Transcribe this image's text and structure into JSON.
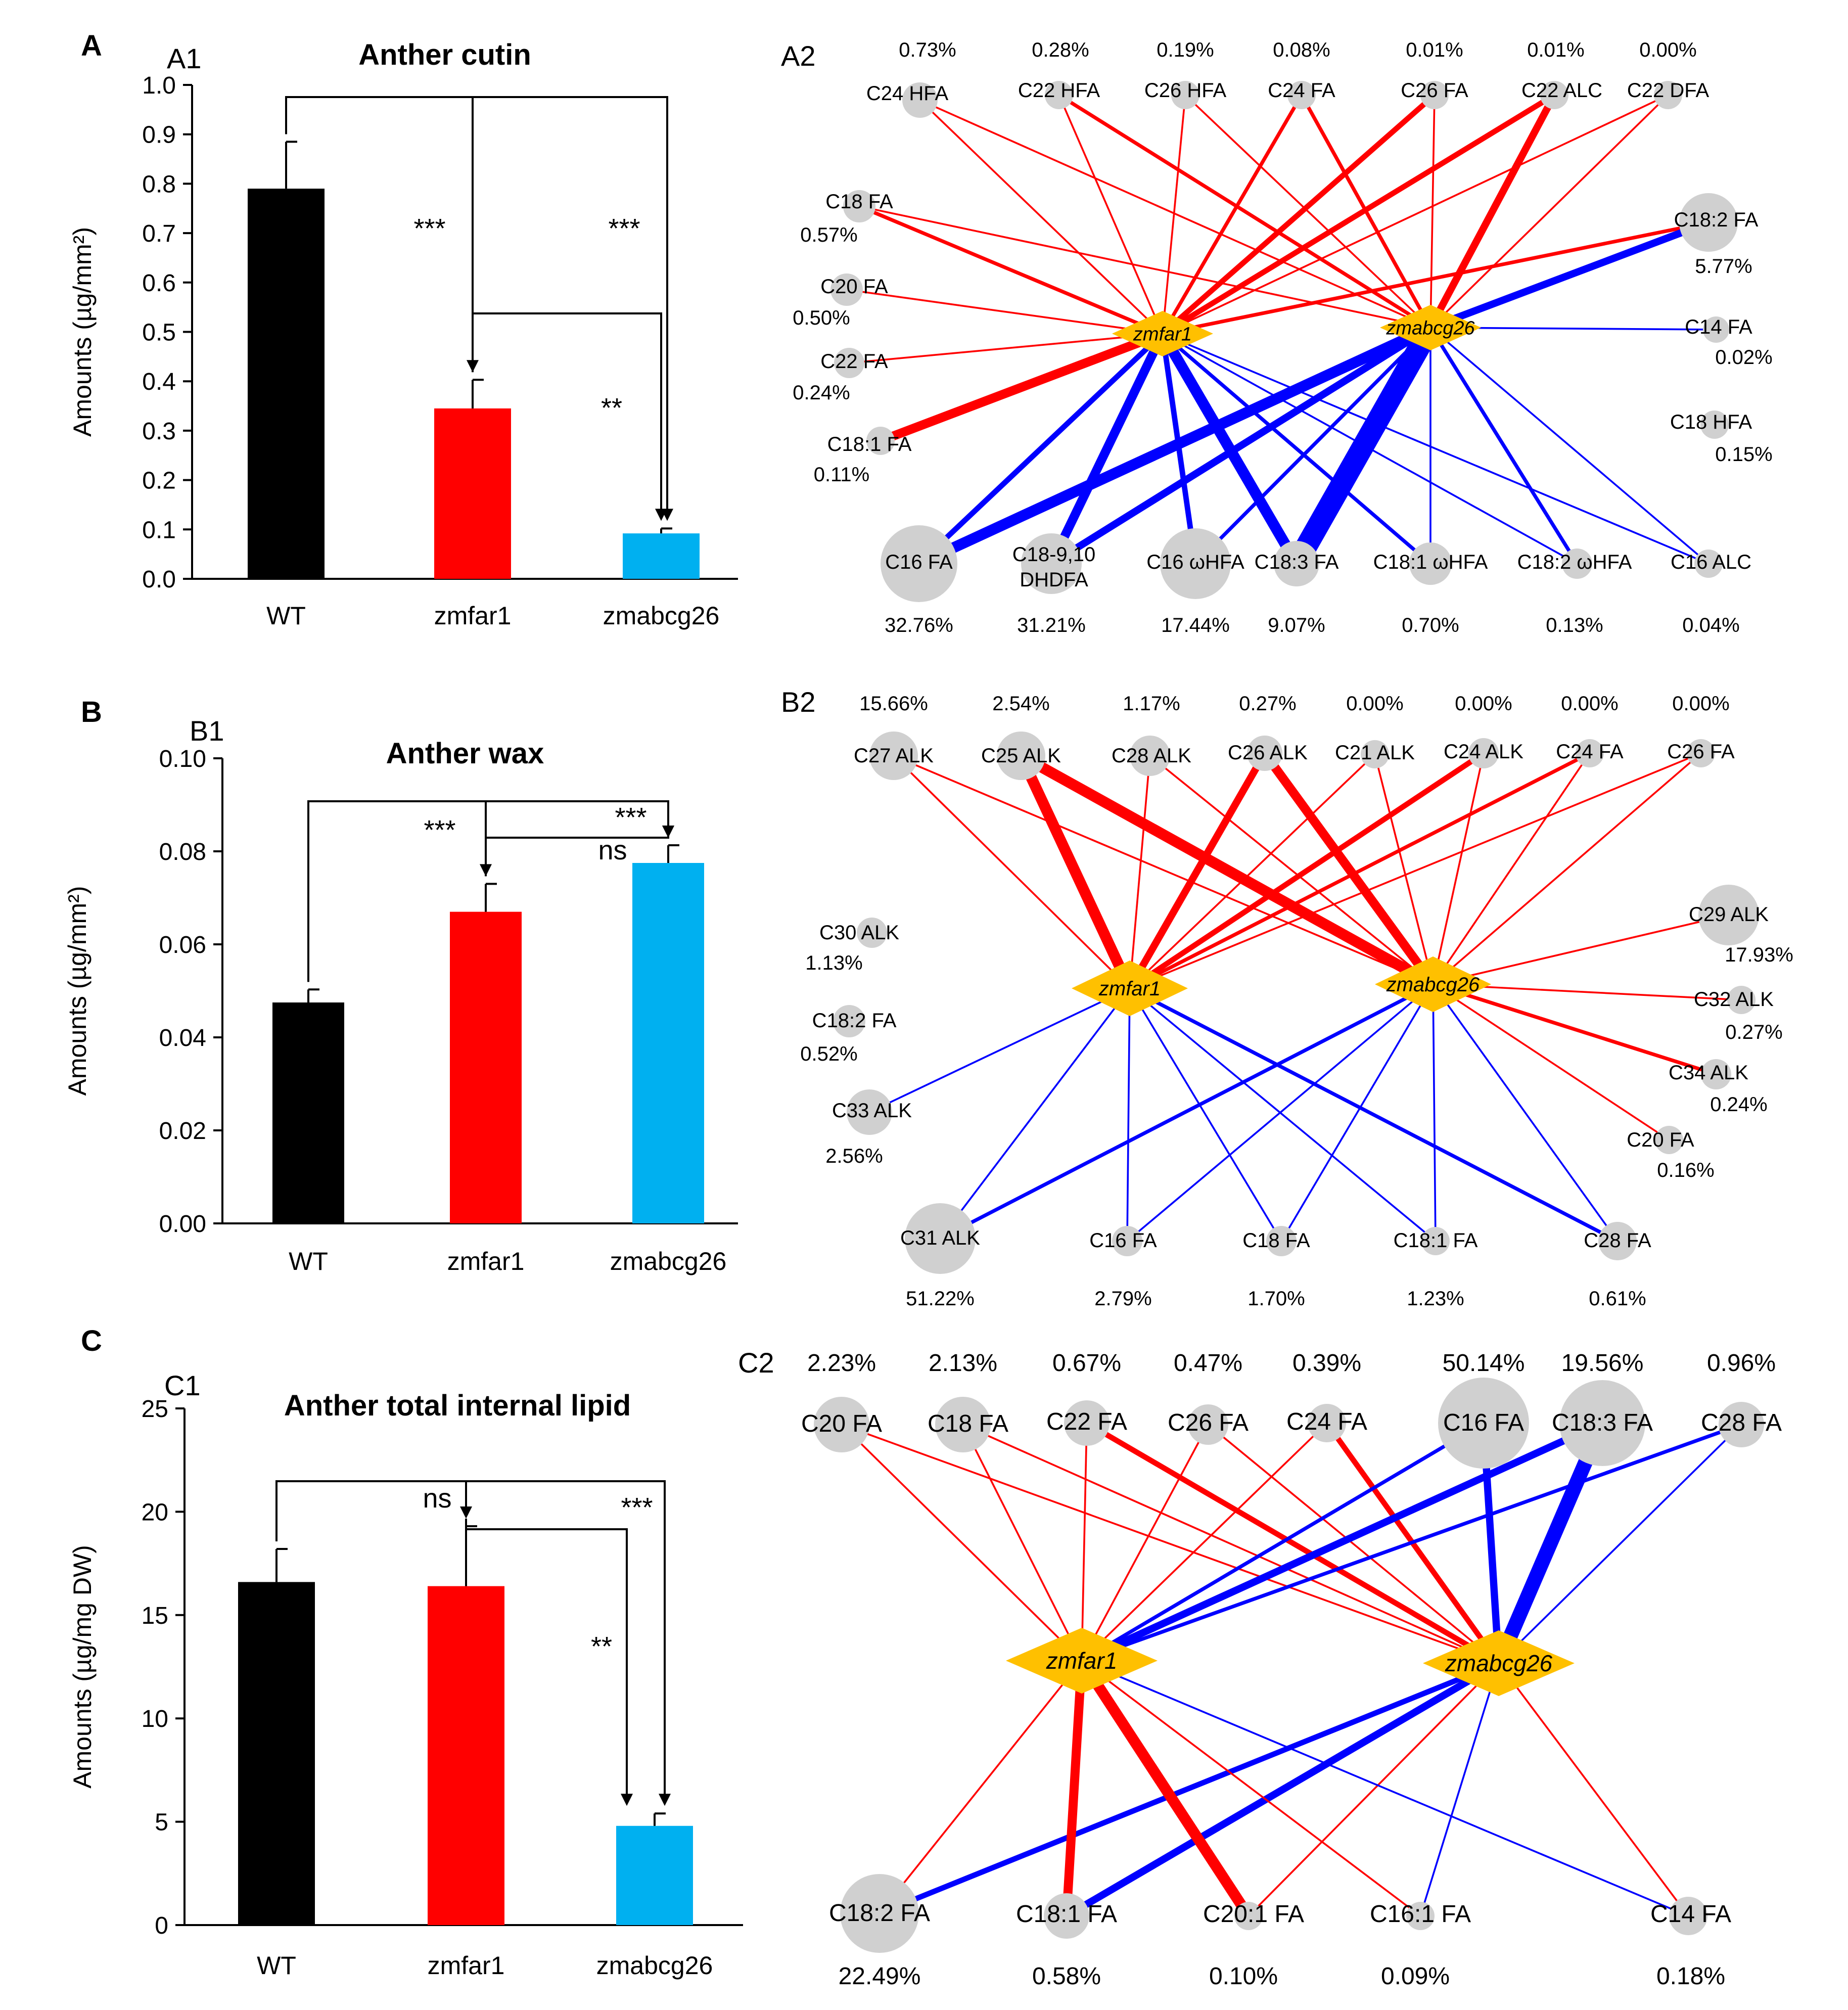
{
  "panel_labels": {
    "A": "A",
    "B": "B",
    "C": "C",
    "A1": "A1",
    "A2": "A2",
    "B1": "B1",
    "B2": "B2",
    "C1": "C1",
    "C2": "C2"
  },
  "colors": {
    "WT": "#000000",
    "zmfar1": "#ff0000",
    "zmabcg26": "#00b0f0",
    "increase": "#ff0000",
    "decrease": "#0000ff",
    "node": "#d0d0d0",
    "hub": "#ffc000"
  },
  "chart_data": [
    {
      "id": "A1",
      "type": "bar",
      "title": "Anther cutin",
      "xlabel": "",
      "ylabel": "Amounts (µg/mm²)",
      "categories": [
        "WT",
        "zmfar1",
        "zmabcg26"
      ],
      "values": [
        0.79,
        0.345,
        0.092
      ],
      "errors": [
        0.095,
        0.058,
        0.01
      ],
      "ylim": [
        0,
        1.0
      ],
      "yticks": [
        "0.0",
        "0.1",
        "0.2",
        "0.3",
        "0.4",
        "0.5",
        "0.6",
        "0.7",
        "0.8",
        "0.9",
        "1.0"
      ],
      "comparisons": [
        {
          "pair": [
            "WT",
            "zmfar1"
          ],
          "label": "***"
        },
        {
          "pair": [
            "WT",
            "zmabcg26"
          ],
          "label": "***"
        },
        {
          "pair": [
            "zmfar1",
            "zmabcg26"
          ],
          "label": "**"
        }
      ]
    },
    {
      "id": "B1",
      "type": "bar",
      "title": "Anther wax",
      "xlabel": "",
      "ylabel": "Amounts (µg/mm²)",
      "categories": [
        "WT",
        "zmfar1",
        "zmabcg26"
      ],
      "values": [
        0.0475,
        0.067,
        0.0775
      ],
      "errors": [
        0.0028,
        0.006,
        0.0038
      ],
      "ylim": [
        0,
        0.1
      ],
      "yticks": [
        "0.00",
        "0.02",
        "0.04",
        "0.06",
        "0.08",
        "0.10"
      ],
      "comparisons": [
        {
          "pair": [
            "WT",
            "zmfar1"
          ],
          "label": "***"
        },
        {
          "pair": [
            "WT",
            "zmabcg26"
          ],
          "label": "***"
        },
        {
          "pair": [
            "zmfar1",
            "zmabcg26"
          ],
          "label": "ns"
        }
      ]
    },
    {
      "id": "C1",
      "type": "bar",
      "title": "Anther total internal lipid",
      "xlabel": "",
      "ylabel": "Amounts (µg/mg DW)",
      "categories": [
        "WT",
        "zmfar1",
        "zmabcg26"
      ],
      "values": [
        16.6,
        16.4,
        4.8
      ],
      "errors": [
        1.6,
        2.9,
        0.6
      ],
      "ylim": [
        0,
        25
      ],
      "yticks": [
        "0",
        "5",
        "10",
        "15",
        "20",
        "25"
      ],
      "comparisons": [
        {
          "pair": [
            "WT",
            "zmfar1"
          ],
          "label": "ns"
        },
        {
          "pair": [
            "WT",
            "zmabcg26"
          ],
          "label": "***"
        },
        {
          "pair": [
            "zmfar1",
            "zmabcg26"
          ],
          "label": "**"
        }
      ]
    },
    {
      "id": "A2",
      "type": "network",
      "hubs": [
        "zmfar1",
        "zmabcg26"
      ],
      "nodes": [
        {
          "name": "C24 HFA",
          "pct": "0.73%",
          "links": [
            [
              "zmfar1",
              "up",
              1
            ],
            [
              "zmabcg26",
              "up",
              1
            ]
          ]
        },
        {
          "name": "C22 HFA",
          "pct": "0.28%",
          "links": [
            [
              "zmfar1",
              "up",
              1
            ],
            [
              "zmabcg26",
              "up",
              2
            ]
          ]
        },
        {
          "name": "C26 HFA",
          "pct": "0.19%",
          "links": [
            [
              "zmfar1",
              "up",
              1
            ],
            [
              "zmabcg26",
              "up",
              1
            ]
          ]
        },
        {
          "name": "C24 FA",
          "pct": "0.08%",
          "links": [
            [
              "zmfar1",
              "up",
              2
            ],
            [
              "zmabcg26",
              "up",
              2
            ]
          ]
        },
        {
          "name": "C26 FA",
          "pct": "0.01%",
          "links": [
            [
              "zmfar1",
              "up",
              3
            ],
            [
              "zmabcg26",
              "up",
              1
            ]
          ]
        },
        {
          "name": "C22 ALC",
          "pct": "0.01%",
          "links": [
            [
              "zmfar1",
              "up",
              3
            ],
            [
              "zmabcg26",
              "up",
              4
            ]
          ]
        },
        {
          "name": "C22 DFA",
          "pct": "0.00%",
          "links": [
            [
              "zmfar1",
              "up",
              1
            ],
            [
              "zmabcg26",
              "up",
              1
            ]
          ]
        },
        {
          "name": "C18 FA",
          "pct": "0.57%",
          "links": [
            [
              "zmfar1",
              "up",
              2
            ],
            [
              "zmabcg26",
              "up",
              1
            ]
          ]
        },
        {
          "name": "C20 FA",
          "pct": "0.50%",
          "links": [
            [
              "zmfar1",
              "up",
              1
            ]
          ]
        },
        {
          "name": "C22 FA",
          "pct": "0.24%",
          "links": [
            [
              "zmfar1",
              "up",
              1
            ]
          ]
        },
        {
          "name": "C18:1 FA",
          "pct": "0.11%",
          "links": [
            [
              "zmfar1",
              "up",
              5
            ]
          ]
        },
        {
          "name": "C18:2 FA",
          "pct": "5.77%",
          "links": [
            [
              "zmfar1",
              "up",
              2
            ],
            [
              "zmabcg26",
              "down",
              4
            ]
          ]
        },
        {
          "name": "C14 FA",
          "pct": "0.02%",
          "links": [
            [
              "zmabcg26",
              "down",
              1
            ]
          ]
        },
        {
          "name": "C18 HFA",
          "pct": "0.15%",
          "links": []
        },
        {
          "name": "C16 FA",
          "pct": "32.76%",
          "links": [
            [
              "zmfar1",
              "down",
              3
            ],
            [
              "zmabcg26",
              "down",
              6
            ]
          ]
        },
        {
          "name": "C18-9,10 DHDFA",
          "pct": "31.21%",
          "links": [
            [
              "zmfar1",
              "down",
              5
            ],
            [
              "zmabcg26",
              "down",
              4
            ]
          ]
        },
        {
          "name": "C16 ωHFA",
          "pct": "17.44%",
          "links": [
            [
              "zmfar1",
              "down",
              3
            ],
            [
              "zmabcg26",
              "down",
              2
            ]
          ]
        },
        {
          "name": "C18:3 FA",
          "pct": "9.07%",
          "links": [
            [
              "zmfar1",
              "down",
              6
            ],
            [
              "zmabcg26",
              "down",
              12
            ]
          ]
        },
        {
          "name": "C18:1 ωHFA",
          "pct": "0.70%",
          "links": [
            [
              "zmfar1",
              "down",
              2
            ],
            [
              "zmabcg26",
              "down",
              1
            ]
          ]
        },
        {
          "name": "C18:2 ωHFA",
          "pct": "0.13%",
          "links": [
            [
              "zmfar1",
              "down",
              1
            ],
            [
              "zmabcg26",
              "down",
              2
            ]
          ]
        },
        {
          "name": "C16 ALC",
          "pct": "0.04%",
          "links": [
            [
              "zmfar1",
              "down",
              1
            ],
            [
              "zmabcg26",
              "down",
              1
            ]
          ]
        }
      ]
    },
    {
      "id": "B2",
      "type": "network",
      "hubs": [
        "zmfar1",
        "zmabcg26"
      ],
      "nodes": [
        {
          "name": "C27 ALK",
          "pct": "15.66%",
          "links": [
            [
              "zmfar1",
              "up",
              1
            ],
            [
              "zmabcg26",
              "up",
              1
            ]
          ]
        },
        {
          "name": "C25 ALK",
          "pct": "2.54%",
          "links": [
            [
              "zmfar1",
              "up",
              6
            ],
            [
              "zmabcg26",
              "up",
              6
            ]
          ]
        },
        {
          "name": "C28 ALK",
          "pct": "1.17%",
          "links": [
            [
              "zmfar1",
              "up",
              1
            ],
            [
              "zmabcg26",
              "up",
              1
            ]
          ]
        },
        {
          "name": "C26 ALK",
          "pct": "0.27%",
          "links": [
            [
              "zmfar1",
              "up",
              4
            ],
            [
              "zmabcg26",
              "up",
              5
            ]
          ]
        },
        {
          "name": "C21 ALK",
          "pct": "0.00%",
          "links": [
            [
              "zmfar1",
              "up",
              1
            ],
            [
              "zmabcg26",
              "up",
              1
            ]
          ]
        },
        {
          "name": "C24 ALK",
          "pct": "0.00%",
          "links": [
            [
              "zmfar1",
              "up",
              3
            ],
            [
              "zmabcg26",
              "up",
              1
            ]
          ]
        },
        {
          "name": "C24 FA",
          "pct": "0.00%",
          "links": [
            [
              "zmfar1",
              "up",
              2
            ],
            [
              "zmabcg26",
              "up",
              1
            ]
          ]
        },
        {
          "name": "C26 FA",
          "pct": "0.00%",
          "links": [
            [
              "zmfar1",
              "up",
              1
            ],
            [
              "zmabcg26",
              "up",
              1
            ]
          ]
        },
        {
          "name": "C30 ALK",
          "pct": "1.13%",
          "links": []
        },
        {
          "name": "C18:2 FA",
          "pct": "0.52%",
          "links": []
        },
        {
          "name": "C33 ALK",
          "pct": "2.56%",
          "links": [
            [
              "zmfar1",
              "down",
              1
            ]
          ]
        },
        {
          "name": "C29 ALK",
          "pct": "17.93%",
          "links": [
            [
              "zmabcg26",
              "up",
              1
            ]
          ]
        },
        {
          "name": "C32 ALK",
          "pct": "0.27%",
          "links": [
            [
              "zmabcg26",
              "up",
              1
            ]
          ]
        },
        {
          "name": "C34 ALK",
          "pct": "0.24%",
          "links": [
            [
              "zmabcg26",
              "up",
              2
            ]
          ]
        },
        {
          "name": "C20 FA",
          "pct": "0.16%",
          "links": [
            [
              "zmabcg26",
              "up",
              1
            ]
          ]
        },
        {
          "name": "C31 ALK",
          "pct": "51.22%",
          "links": [
            [
              "zmfar1",
              "down",
              1
            ],
            [
              "zmabcg26",
              "down",
              2
            ]
          ]
        },
        {
          "name": "C16 FA",
          "pct": "2.79%",
          "links": [
            [
              "zmfar1",
              "down",
              1
            ],
            [
              "zmabcg26",
              "down",
              1
            ]
          ]
        },
        {
          "name": "C18 FA",
          "pct": "1.70%",
          "links": [
            [
              "zmfar1",
              "down",
              1
            ],
            [
              "zmabcg26",
              "down",
              1
            ]
          ]
        },
        {
          "name": "C18:1 FA",
          "pct": "1.23%",
          "links": [
            [
              "zmfar1",
              "down",
              1
            ],
            [
              "zmabcg26",
              "down",
              1
            ]
          ]
        },
        {
          "name": "C28 FA",
          "pct": "0.61%",
          "links": [
            [
              "zmfar1",
              "down",
              2
            ],
            [
              "zmabcg26",
              "down",
              1
            ]
          ]
        }
      ]
    },
    {
      "id": "C2",
      "type": "network",
      "hubs": [
        "zmfar1",
        "zmabcg26"
      ],
      "nodes": [
        {
          "name": "C20 FA",
          "pct": "2.23%",
          "links": [
            [
              "zmfar1",
              "up",
              1
            ],
            [
              "zmabcg26",
              "up",
              1
            ]
          ]
        },
        {
          "name": "C18 FA",
          "pct": "2.13%",
          "links": [
            [
              "zmfar1",
              "up",
              1
            ],
            [
              "zmabcg26",
              "up",
              1
            ]
          ]
        },
        {
          "name": "C22 FA",
          "pct": "0.67%",
          "links": [
            [
              "zmfar1",
              "up",
              1
            ],
            [
              "zmabcg26",
              "up",
              3
            ]
          ]
        },
        {
          "name": "C26 FA",
          "pct": "0.47%",
          "links": [
            [
              "zmfar1",
              "up",
              1
            ],
            [
              "zmabcg26",
              "up",
              1
            ]
          ]
        },
        {
          "name": "C24 FA",
          "pct": "0.39%",
          "links": [
            [
              "zmfar1",
              "up",
              1
            ],
            [
              "zmabcg26",
              "up",
              3
            ]
          ]
        },
        {
          "name": "C16 FA",
          "pct": "50.14%",
          "links": [
            [
              "zmfar1",
              "down",
              2
            ],
            [
              "zmabcg26",
              "down",
              4
            ]
          ]
        },
        {
          "name": "C18:3 FA",
          "pct": "19.56%",
          "links": [
            [
              "zmfar1",
              "down",
              4
            ],
            [
              "zmabcg26",
              "down",
              8
            ]
          ]
        },
        {
          "name": "C28 FA",
          "pct": "0.96%",
          "links": [
            [
              "zmfar1",
              "down",
              2
            ],
            [
              "zmabcg26",
              "down",
              1
            ]
          ]
        },
        {
          "name": "C18:2 FA",
          "pct": "22.49%",
          "links": [
            [
              "zmfar1",
              "up",
              1
            ],
            [
              "zmabcg26",
              "down",
              3
            ]
          ]
        },
        {
          "name": "C18:1 FA",
          "pct": "0.58%",
          "links": [
            [
              "zmfar1",
              "up",
              5
            ],
            [
              "zmabcg26",
              "down",
              4
            ]
          ]
        },
        {
          "name": "C20:1 FA",
          "pct": "0.10%",
          "links": [
            [
              "zmfar1",
              "up",
              6
            ],
            [
              "zmabcg26",
              "up",
              1
            ]
          ]
        },
        {
          "name": "C16:1 FA",
          "pct": "0.09%",
          "links": [
            [
              "zmfar1",
              "up",
              1
            ],
            [
              "zmabcg26",
              "down",
              1
            ]
          ]
        },
        {
          "name": "C14 FA",
          "pct": "0.18%",
          "links": [
            [
              "zmfar1",
              "down",
              1
            ],
            [
              "zmabcg26",
              "up",
              1
            ]
          ]
        }
      ]
    }
  ]
}
